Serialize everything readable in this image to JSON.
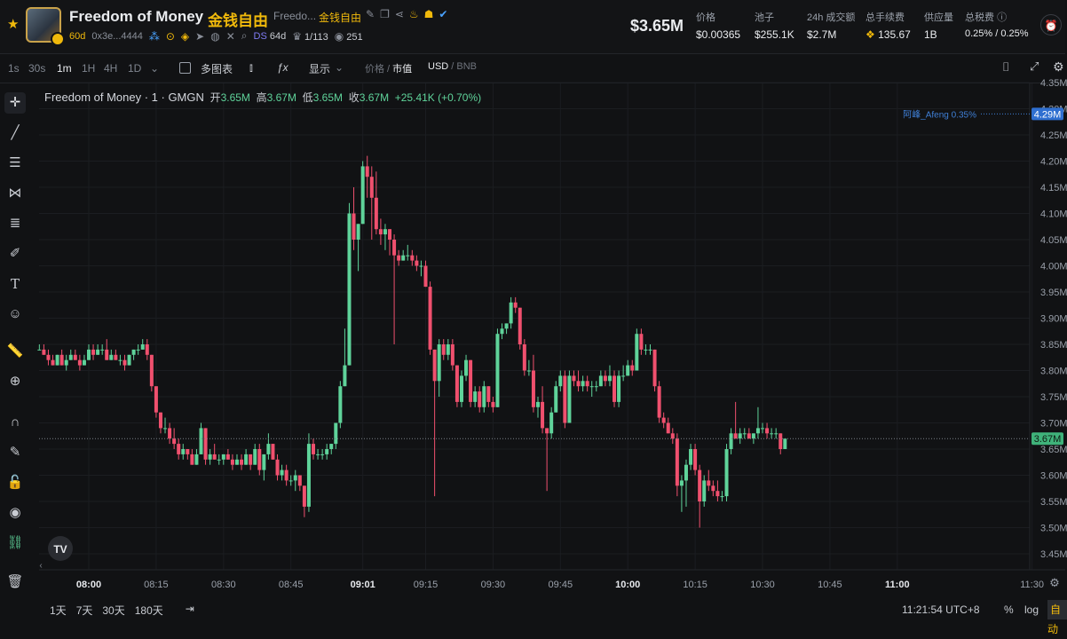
{
  "header": {
    "title": "Freedom of Money",
    "title_cn": "金钱自由",
    "short_name": "Freedo...",
    "short_cn": "金钱自由",
    "age": "60d",
    "address": "0x3e...4444",
    "ds_label": "DS",
    "ds_value": "64d",
    "holders": "1/113",
    "views": "251",
    "price": "$3.65M",
    "stats": [
      {
        "label": "价格",
        "value": "$0.00365"
      },
      {
        "label": "池子",
        "value": "$255.1K"
      },
      {
        "label": "24h 成交额",
        "value": "$2.7M"
      },
      {
        "label": "总手续费",
        "value": "135.67"
      },
      {
        "label": "供应量",
        "value": "1B"
      },
      {
        "label": "总税费",
        "value": "0.25% / 0.25%"
      }
    ]
  },
  "toolbar": {
    "timeframes": [
      "1s",
      "30s",
      "1m",
      "1H",
      "4H",
      "1D"
    ],
    "active_timeframe": "1m",
    "multi_chart": "多图表",
    "display": "显示",
    "price_label": "价格",
    "mcap_label": "市值",
    "quote_usd": "USD",
    "quote_bnb": "BNB"
  },
  "legend": {
    "name": "Freedom of Money · 1 · GMGN",
    "open_label": "开",
    "open": "3.65M",
    "high_label": "高",
    "high": "3.67M",
    "low_label": "低",
    "low": "3.65M",
    "close_label": "收",
    "close": "3.67M",
    "change": "+25.41K (+0.70%)"
  },
  "bottom": {
    "ranges": [
      "1天",
      "7天",
      "30天",
      "180天"
    ],
    "clock": "11:21:54 UTC+8",
    "percent": "%",
    "log": "log",
    "auto": "自动"
  },
  "colors": {
    "up": "#5fd39a",
    "down": "#f0506e",
    "accent": "#f0b90b",
    "marker": "#3f7fd6"
  },
  "chart_data": {
    "type": "candlestick",
    "title": "Freedom of Money · 1 · GMGN",
    "ylabel": "",
    "ylim": [
      3.42,
      4.37
    ],
    "y_unit": "M",
    "yticks": [
      "4.35M",
      "4.30M",
      "4.25M",
      "4.20M",
      "4.15M",
      "4.10M",
      "4.05M",
      "4.00M",
      "3.95M",
      "3.90M",
      "3.85M",
      "3.80M",
      "3.75M",
      "3.70M",
      "3.65M",
      "3.60M",
      "3.55M",
      "3.50M",
      "3.45M"
    ],
    "xticks": [
      {
        "t": 0,
        "label": "08:00",
        "bold": true
      },
      {
        "t": 15,
        "label": "08:15"
      },
      {
        "t": 30,
        "label": "08:30"
      },
      {
        "t": 45,
        "label": "08:45"
      },
      {
        "t": 61,
        "label": "09:01",
        "bold": true
      },
      {
        "t": 75,
        "label": "09:15"
      },
      {
        "t": 90,
        "label": "09:30"
      },
      {
        "t": 105,
        "label": "09:45"
      },
      {
        "t": 120,
        "label": "10:00",
        "bold": true
      },
      {
        "t": 135,
        "label": "10:15"
      },
      {
        "t": 150,
        "label": "10:30"
      },
      {
        "t": 165,
        "label": "10:45"
      },
      {
        "t": 180,
        "label": "11:00",
        "bold": true
      },
      {
        "t": 210,
        "label": "11:30"
      }
    ],
    "grid": true,
    "current_price": "3.67M",
    "current_value": 3.67,
    "marker_label": "阿峰_Afeng 0.35%",
    "marker_price": "4.29M",
    "marker_value": 4.29,
    "x_start": -11,
    "candles": [
      [
        3.84,
        3.85,
        3.84,
        3.84
      ],
      [
        3.84,
        3.85,
        3.83,
        3.83
      ],
      [
        3.83,
        3.84,
        3.81,
        3.82
      ],
      [
        3.82,
        3.83,
        3.81,
        3.81
      ],
      [
        3.81,
        3.83,
        3.81,
        3.83
      ],
      [
        3.83,
        3.84,
        3.81,
        3.81
      ],
      [
        3.81,
        3.83,
        3.8,
        3.82
      ],
      [
        3.82,
        3.84,
        3.82,
        3.83
      ],
      [
        3.83,
        3.84,
        3.82,
        3.82
      ],
      [
        3.82,
        3.83,
        3.8,
        3.81
      ],
      [
        3.81,
        3.83,
        3.81,
        3.82
      ],
      [
        3.82,
        3.85,
        3.82,
        3.84
      ],
      [
        3.84,
        3.85,
        3.82,
        3.83
      ],
      [
        3.83,
        3.85,
        3.83,
        3.84
      ],
      [
        3.84,
        3.85,
        3.83,
        3.84
      ],
      [
        3.84,
        3.86,
        3.82,
        3.82
      ],
      [
        3.82,
        3.84,
        3.82,
        3.83
      ],
      [
        3.83,
        3.84,
        3.82,
        3.82
      ],
      [
        3.82,
        3.83,
        3.81,
        3.82
      ],
      [
        3.82,
        3.83,
        3.8,
        3.81
      ],
      [
        3.81,
        3.83,
        3.81,
        3.83
      ],
      [
        3.83,
        3.84,
        3.82,
        3.84
      ],
      [
        3.84,
        3.85,
        3.83,
        3.84
      ],
      [
        3.84,
        3.86,
        3.84,
        3.85
      ],
      [
        3.85,
        3.86,
        3.82,
        3.83
      ],
      [
        3.83,
        3.83,
        3.76,
        3.77
      ],
      [
        3.77,
        3.77,
        3.71,
        3.72
      ],
      [
        3.72,
        3.72,
        3.68,
        3.69
      ],
      [
        3.69,
        3.71,
        3.68,
        3.69
      ],
      [
        3.69,
        3.7,
        3.66,
        3.67
      ],
      [
        3.67,
        3.69,
        3.65,
        3.66
      ],
      [
        3.66,
        3.67,
        3.63,
        3.64
      ],
      [
        3.64,
        3.66,
        3.63,
        3.65
      ],
      [
        3.65,
        3.65,
        3.63,
        3.64
      ],
      [
        3.64,
        3.65,
        3.62,
        3.62
      ],
      [
        3.62,
        3.65,
        3.62,
        3.64
      ],
      [
        3.64,
        3.7,
        3.64,
        3.69
      ],
      [
        3.69,
        3.69,
        3.62,
        3.63
      ],
      [
        3.63,
        3.65,
        3.62,
        3.64
      ],
      [
        3.64,
        3.66,
        3.63,
        3.63
      ],
      [
        3.63,
        3.64,
        3.62,
        3.63
      ],
      [
        3.63,
        3.64,
        3.62,
        3.64
      ],
      [
        3.64,
        3.65,
        3.63,
        3.63
      ],
      [
        3.63,
        3.64,
        3.61,
        3.62
      ],
      [
        3.62,
        3.64,
        3.62,
        3.63
      ],
      [
        3.63,
        3.64,
        3.61,
        3.62
      ],
      [
        3.62,
        3.65,
        3.62,
        3.64
      ],
      [
        3.64,
        3.64,
        3.61,
        3.62
      ],
      [
        3.62,
        3.66,
        3.62,
        3.65
      ],
      [
        3.65,
        3.66,
        3.6,
        3.61
      ],
      [
        3.61,
        3.64,
        3.59,
        3.64
      ],
      [
        3.64,
        3.68,
        3.63,
        3.66
      ],
      [
        3.66,
        3.66,
        3.63,
        3.63
      ],
      [
        3.63,
        3.64,
        3.59,
        3.6
      ],
      [
        3.6,
        3.62,
        3.59,
        3.61
      ],
      [
        3.61,
        3.62,
        3.58,
        3.59
      ],
      [
        3.59,
        3.6,
        3.58,
        3.59
      ],
      [
        3.59,
        3.61,
        3.57,
        3.6
      ],
      [
        3.6,
        3.6,
        3.57,
        3.58
      ],
      [
        3.58,
        3.58,
        3.52,
        3.54
      ],
      [
        3.54,
        3.68,
        3.53,
        3.66
      ],
      [
        3.66,
        3.67,
        3.63,
        3.64
      ],
      [
        3.64,
        3.65,
        3.63,
        3.64
      ],
      [
        3.64,
        3.65,
        3.63,
        3.64
      ],
      [
        3.64,
        3.66,
        3.63,
        3.65
      ],
      [
        3.65,
        3.66,
        3.64,
        3.66
      ],
      [
        3.66,
        3.7,
        3.65,
        3.7
      ],
      [
        3.7,
        3.78,
        3.69,
        3.77
      ],
      [
        3.77,
        3.88,
        3.77,
        3.81
      ],
      [
        3.81,
        4.12,
        3.81,
        4.1
      ],
      [
        4.1,
        4.15,
        4.03,
        4.05
      ],
      [
        4.05,
        4.08,
        3.99,
        4.08
      ],
      [
        4.08,
        4.2,
        4.08,
        4.19
      ],
      [
        4.19,
        4.21,
        4.13,
        4.17
      ],
      [
        4.17,
        4.19,
        4.05,
        4.13
      ],
      [
        4.13,
        4.18,
        4.06,
        4.07
      ],
      [
        4.07,
        4.09,
        4.04,
        4.06
      ],
      [
        4.06,
        4.08,
        4.03,
        4.07
      ],
      [
        4.07,
        4.07,
        4.02,
        4.05
      ],
      [
        4.05,
        4.06,
        3.85,
        4.02
      ],
      [
        4.02,
        4.03,
        4.0,
        4.01
      ],
      [
        4.01,
        4.03,
        4.01,
        4.02
      ],
      [
        4.02,
        4.04,
        4.01,
        4.02
      ],
      [
        4.02,
        4.03,
        4.0,
        4.01
      ],
      [
        4.01,
        4.02,
        3.99,
        4.0
      ],
      [
        4.0,
        4.01,
        3.98,
        4.0
      ],
      [
        4.0,
        4.01,
        3.96,
        3.96
      ],
      [
        3.96,
        3.97,
        3.83,
        3.84
      ],
      [
        3.84,
        3.84,
        3.56,
        3.78
      ],
      [
        3.78,
        3.86,
        3.75,
        3.85
      ],
      [
        3.85,
        3.86,
        3.82,
        3.83
      ],
      [
        3.83,
        3.86,
        3.82,
        3.85
      ],
      [
        3.85,
        3.86,
        3.8,
        3.81
      ],
      [
        3.81,
        3.81,
        3.73,
        3.74
      ],
      [
        3.74,
        3.8,
        3.73,
        3.79
      ],
      [
        3.79,
        3.83,
        3.78,
        3.82
      ],
      [
        3.82,
        3.82,
        3.73,
        3.74
      ],
      [
        3.74,
        3.77,
        3.73,
        3.76
      ],
      [
        3.76,
        3.77,
        3.72,
        3.73
      ],
      [
        3.73,
        3.78,
        3.72,
        3.77
      ],
      [
        3.77,
        3.77,
        3.73,
        3.74
      ],
      [
        3.74,
        3.75,
        3.72,
        3.73
      ],
      [
        3.73,
        3.88,
        3.73,
        3.87
      ],
      [
        3.87,
        3.89,
        3.86,
        3.88
      ],
      [
        3.88,
        3.89,
        3.87,
        3.89
      ],
      [
        3.89,
        3.94,
        3.88,
        3.93
      ],
      [
        3.93,
        3.94,
        3.91,
        3.92
      ],
      [
        3.92,
        3.92,
        3.84,
        3.85
      ],
      [
        3.85,
        3.86,
        3.79,
        3.8
      ],
      [
        3.8,
        3.82,
        3.79,
        3.8
      ],
      [
        3.8,
        3.83,
        3.72,
        3.73
      ],
      [
        3.73,
        3.75,
        3.71,
        3.74
      ],
      [
        3.74,
        3.77,
        3.68,
        3.69
      ],
      [
        3.69,
        3.69,
        3.57,
        3.68
      ],
      [
        3.68,
        3.73,
        3.67,
        3.72
      ],
      [
        3.72,
        3.78,
        3.72,
        3.77
      ],
      [
        3.77,
        3.8,
        3.76,
        3.79
      ],
      [
        3.79,
        3.8,
        3.69,
        3.7
      ],
      [
        3.7,
        3.8,
        3.7,
        3.79
      ],
      [
        3.79,
        3.8,
        3.77,
        3.78
      ],
      [
        3.78,
        3.8,
        3.76,
        3.77
      ],
      [
        3.77,
        3.79,
        3.76,
        3.78
      ],
      [
        3.78,
        3.79,
        3.76,
        3.77
      ],
      [
        3.77,
        3.78,
        3.75,
        3.77
      ],
      [
        3.77,
        3.78,
        3.76,
        3.77
      ],
      [
        3.77,
        3.8,
        3.77,
        3.79
      ],
      [
        3.79,
        3.8,
        3.77,
        3.78
      ],
      [
        3.78,
        3.81,
        3.77,
        3.79
      ],
      [
        3.79,
        3.8,
        3.73,
        3.74
      ],
      [
        3.74,
        3.8,
        3.73,
        3.79
      ],
      [
        3.79,
        3.81,
        3.78,
        3.79
      ],
      [
        3.79,
        3.82,
        3.79,
        3.81
      ],
      [
        3.81,
        3.82,
        3.79,
        3.8
      ],
      [
        3.8,
        3.88,
        3.8,
        3.87
      ],
      [
        3.87,
        3.88,
        3.83,
        3.84
      ],
      [
        3.84,
        3.85,
        3.83,
        3.84
      ],
      [
        3.84,
        3.85,
        3.83,
        3.84
      ],
      [
        3.84,
        3.84,
        3.76,
        3.77
      ],
      [
        3.77,
        3.78,
        3.7,
        3.71
      ],
      [
        3.71,
        3.72,
        3.69,
        3.7
      ],
      [
        3.7,
        3.71,
        3.68,
        3.68
      ],
      [
        3.68,
        3.69,
        3.66,
        3.67
      ],
      [
        3.67,
        3.68,
        3.56,
        3.58
      ],
      [
        3.58,
        3.6,
        3.53,
        3.59
      ],
      [
        3.59,
        3.63,
        3.54,
        3.62
      ],
      [
        3.62,
        3.66,
        3.61,
        3.65
      ],
      [
        3.65,
        3.66,
        3.6,
        3.61
      ],
      [
        3.61,
        3.62,
        3.5,
        3.55
      ],
      [
        3.55,
        3.6,
        3.54,
        3.59
      ],
      [
        3.59,
        3.61,
        3.57,
        3.58
      ],
      [
        3.58,
        3.59,
        3.56,
        3.57
      ],
      [
        3.57,
        3.59,
        3.55,
        3.56
      ],
      [
        3.56,
        3.57,
        3.55,
        3.56
      ],
      [
        3.56,
        3.66,
        3.55,
        3.65
      ],
      [
        3.65,
        3.69,
        3.64,
        3.68
      ],
      [
        3.68,
        3.74,
        3.67,
        3.67
      ],
      [
        3.67,
        3.69,
        3.66,
        3.68
      ],
      [
        3.68,
        3.69,
        3.67,
        3.68
      ],
      [
        3.68,
        3.69,
        3.67,
        3.67
      ],
      [
        3.67,
        3.68,
        3.66,
        3.68
      ],
      [
        3.68,
        3.73,
        3.67,
        3.69
      ],
      [
        3.69,
        3.7,
        3.68,
        3.69
      ],
      [
        3.69,
        3.7,
        3.67,
        3.68
      ],
      [
        3.68,
        3.69,
        3.67,
        3.68
      ],
      [
        3.68,
        3.69,
        3.67,
        3.68
      ],
      [
        3.68,
        3.68,
        3.64,
        3.65
      ],
      [
        3.65,
        3.67,
        3.65,
        3.67
      ]
    ]
  }
}
